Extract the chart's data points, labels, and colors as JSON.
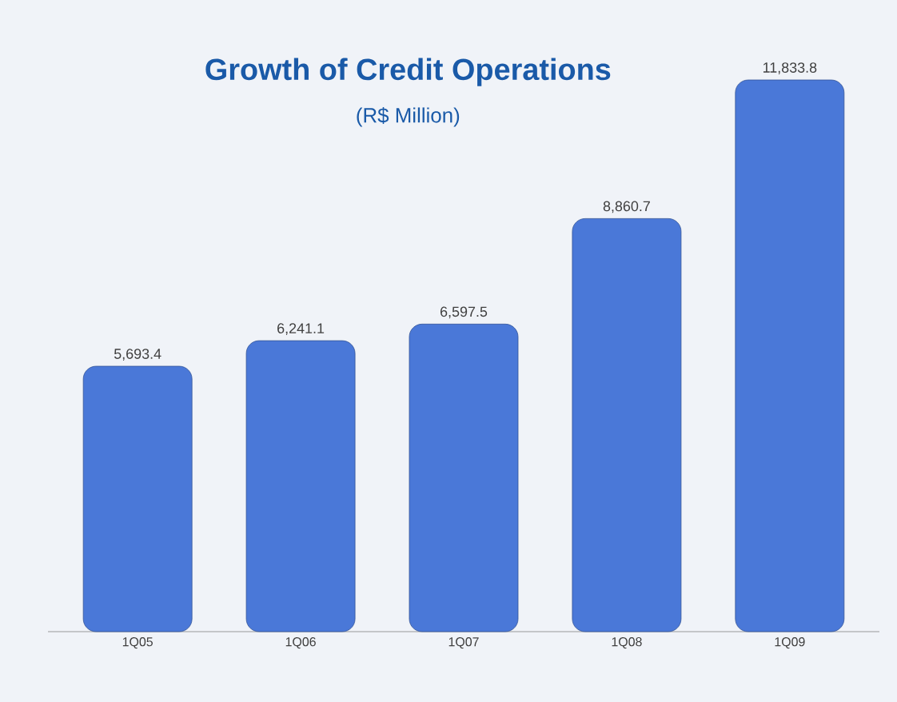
{
  "chart_data": {
    "type": "bar",
    "title": "Growth of Credit Operations",
    "subtitle": "(R$ Million)",
    "categories": [
      "1Q05",
      "1Q06",
      "1Q07",
      "1Q08",
      "1Q09"
    ],
    "values": [
      5693.4,
      6241.1,
      6597.5,
      8860.7,
      11833.8
    ],
    "value_labels": [
      "5,693.4",
      "6,241.1",
      "6,597.5",
      "8,860.7",
      "11,833.8"
    ],
    "color": "#4a78d8"
  }
}
